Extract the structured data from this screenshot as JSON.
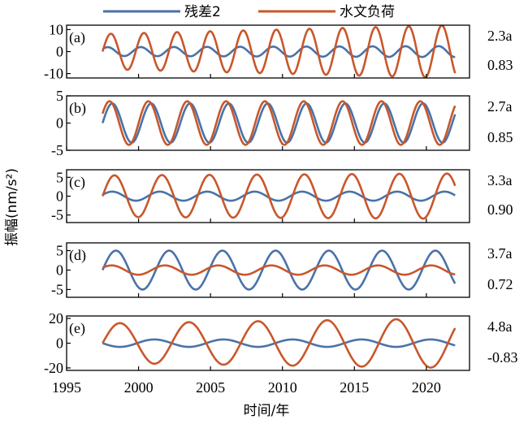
{
  "chart_data": {
    "type": "line",
    "xlabel": "时间/年",
    "ylabel": "振幅(nm/s²)",
    "xlim": [
      1995,
      2023
    ],
    "xticks": [
      1995,
      2000,
      2005,
      2010,
      2015,
      2020
    ],
    "legend": {
      "placement": "top-center",
      "entries": [
        {
          "name": "残差2",
          "color": "#4a72a8"
        },
        {
          "name": "水文负荷",
          "color": "#c8572b"
        }
      ]
    },
    "time_span": [
      1997.5,
      2022.0
    ],
    "panels": [
      {
        "label": "(a)",
        "period_label": "2.3a",
        "corr_label": "0.83",
        "period_years": 2.3,
        "ylim": [
          -12,
          12
        ],
        "yticks": [
          -10,
          0,
          10
        ],
        "series": [
          {
            "name": "残差2",
            "amplitude_start": 2.0,
            "amplitude_end": 2.5,
            "phase": 0.6
          },
          {
            "name": "水文负荷",
            "amplitude_start": 8.0,
            "amplitude_end": 12.0,
            "phase": 0.0
          }
        ]
      },
      {
        "label": "(b)",
        "period_label": "2.7a",
        "corr_label": "0.85",
        "period_years": 2.7,
        "ylim": [
          -5,
          5
        ],
        "yticks": [
          -5,
          0,
          5
        ],
        "series": [
          {
            "name": "残差2",
            "amplitude_start": 3.6,
            "amplitude_end": 3.6,
            "phase": 0.0
          },
          {
            "name": "水文负荷",
            "amplitude_start": 4.0,
            "amplitude_end": 4.0,
            "phase": 0.45
          }
        ]
      },
      {
        "label": "(c)",
        "period_label": "3.3a",
        "corr_label": "0.90",
        "period_years": 3.3,
        "ylim": [
          -7,
          7
        ],
        "yticks": [
          -5,
          0,
          5
        ],
        "series": [
          {
            "name": "残差2",
            "amplitude_start": 1.2,
            "amplitude_end": 1.2,
            "phase": 0.3
          },
          {
            "name": "水文负荷",
            "amplitude_start": 5.5,
            "amplitude_end": 6.0,
            "phase": 0.0
          }
        ]
      },
      {
        "label": "(d)",
        "period_label": "3.7a",
        "corr_label": "0.72",
        "period_years": 3.7,
        "ylim": [
          -7,
          7
        ],
        "yticks": [
          -5,
          0,
          5
        ],
        "series": [
          {
            "name": "残差2",
            "amplitude_start": 5.0,
            "amplitude_end": 5.0,
            "phase": 0.0
          },
          {
            "name": "水文负荷",
            "amplitude_start": 1.2,
            "amplitude_end": 1.2,
            "phase": 0.5
          }
        ]
      },
      {
        "label": "(e)",
        "period_label": "4.8a",
        "corr_label": "-0.83",
        "period_years": 4.8,
        "ylim": [
          -22,
          22
        ],
        "yticks": [
          -20,
          0,
          20
        ],
        "series": [
          {
            "name": "残差2",
            "amplitude_start": 3.0,
            "amplitude_end": 3.0,
            "phase": 3.14
          },
          {
            "name": "水文负荷",
            "amplitude_start": 16.0,
            "amplitude_end": 20.0,
            "phase": 0.0
          }
        ]
      }
    ]
  }
}
